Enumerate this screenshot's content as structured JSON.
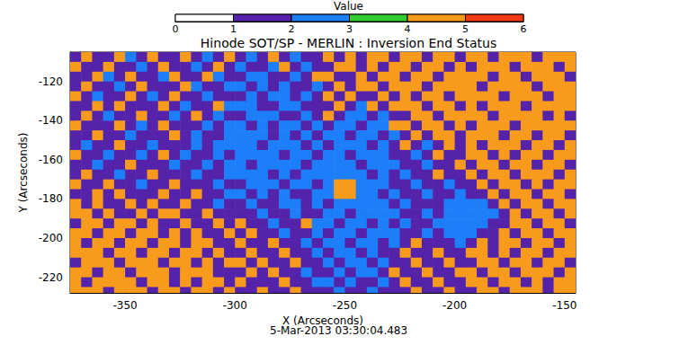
{
  "chart_data": {
    "type": "heatmap",
    "title": "Hinode SOT/SP - MERLIN : Inversion End Status",
    "x_label": "X (Arcseconds)",
    "y_label": "Y (Arcseconds)",
    "annotations": [
      "5-Mar-2013 03:30:04.483"
    ],
    "xlim": [
      -375,
      -145
    ],
    "ylim": [
      -228,
      -105
    ],
    "xticks": [
      -350,
      -300,
      -250,
      -200,
      -150
    ],
    "yticks": [
      -220,
      -200,
      -180,
      -160,
      -140,
      -120
    ],
    "grid": false,
    "x": [
      -372.5,
      -367.5,
      -362.5,
      -357.5,
      -352.5,
      -347.5,
      -342.5,
      -337.5,
      -332.5,
      -327.5,
      -322.5,
      -317.5,
      -312.5,
      -307.5,
      -302.5,
      -297.5,
      -292.5,
      -287.5,
      -282.5,
      -277.5,
      -272.5,
      -267.5,
      -262.5,
      -257.5,
      -252.5,
      -247.5,
      -242.5,
      -237.5,
      -232.5,
      -227.5,
      -222.5,
      -217.5,
      -212.5,
      -207.5,
      -202.5,
      -197.5,
      -192.5,
      -187.5,
      -182.5,
      -177.5,
      -172.5,
      -167.5,
      -162.5,
      -157.5,
      -152.5,
      -147.5
    ],
    "y": [
      -107.5,
      -112.5,
      -117.5,
      -122.5,
      -127.5,
      -132.5,
      -137.5,
      -142.5,
      -147.5,
      -152.5,
      -157.5,
      -162.5,
      -167.5,
      -172.5,
      -177.5,
      -182.5,
      -187.5,
      -192.5,
      -197.5,
      -202.5,
      -207.5,
      -212.5,
      -217.5,
      -222.5,
      -227.5
    ],
    "values": [
      [
        1,
        4,
        1,
        1,
        4,
        2,
        1,
        4,
        1,
        1,
        4,
        1,
        2,
        1,
        4,
        1,
        2,
        1,
        4,
        1,
        2,
        1,
        1,
        4,
        1,
        4,
        1,
        4,
        4,
        1,
        4,
        4,
        1,
        4,
        4,
        1,
        4,
        4,
        1,
        4,
        4,
        4,
        1,
        4,
        4,
        4
      ],
      [
        4,
        1,
        1,
        4,
        1,
        1,
        2,
        1,
        4,
        1,
        1,
        2,
        1,
        4,
        1,
        2,
        1,
        1,
        2,
        4,
        1,
        2,
        1,
        1,
        4,
        4,
        1,
        4,
        1,
        4,
        4,
        1,
        4,
        4,
        1,
        4,
        1,
        4,
        4,
        4,
        1,
        4,
        4,
        4,
        1,
        4
      ],
      [
        1,
        1,
        4,
        2,
        1,
        4,
        1,
        1,
        2,
        4,
        1,
        1,
        4,
        2,
        1,
        1,
        2,
        2,
        1,
        1,
        2,
        1,
        4,
        4,
        1,
        1,
        4,
        1,
        4,
        4,
        1,
        4,
        4,
        1,
        4,
        4,
        4,
        4,
        1,
        4,
        4,
        1,
        4,
        4,
        4,
        1
      ],
      [
        1,
        4,
        1,
        1,
        2,
        1,
        4,
        1,
        1,
        1,
        4,
        2,
        1,
        1,
        2,
        2,
        1,
        2,
        1,
        2,
        1,
        1,
        2,
        1,
        4,
        1,
        4,
        4,
        1,
        4,
        4,
        4,
        1,
        4,
        4,
        4,
        4,
        1,
        4,
        4,
        4,
        4,
        1,
        4,
        4,
        4
      ],
      [
        4,
        1,
        2,
        1,
        1,
        4,
        1,
        2,
        1,
        4,
        1,
        1,
        2,
        1,
        1,
        1,
        2,
        1,
        2,
        2,
        1,
        2,
        1,
        4,
        1,
        4,
        1,
        1,
        4,
        1,
        4,
        1,
        4,
        4,
        1,
        4,
        4,
        4,
        4,
        1,
        4,
        4,
        4,
        1,
        4,
        4
      ],
      [
        1,
        1,
        4,
        1,
        4,
        1,
        1,
        1,
        4,
        1,
        2,
        1,
        1,
        4,
        2,
        2,
        2,
        1,
        1,
        2,
        2,
        1,
        1,
        1,
        4,
        1,
        2,
        4,
        1,
        4,
        4,
        4,
        1,
        4,
        4,
        1,
        4,
        1,
        4,
        4,
        4,
        1,
        4,
        4,
        4,
        4
      ],
      [
        1,
        4,
        1,
        2,
        1,
        1,
        4,
        1,
        1,
        2,
        1,
        4,
        1,
        2,
        1,
        1,
        2,
        2,
        2,
        1,
        1,
        2,
        1,
        4,
        1,
        2,
        2,
        1,
        2,
        1,
        1,
        4,
        4,
        1,
        4,
        4,
        4,
        4,
        1,
        4,
        4,
        4,
        4,
        1,
        4,
        1
      ],
      [
        4,
        1,
        1,
        1,
        4,
        1,
        2,
        1,
        4,
        1,
        1,
        1,
        2,
        1,
        2,
        2,
        1,
        2,
        1,
        2,
        2,
        1,
        2,
        1,
        2,
        2,
        1,
        2,
        2,
        4,
        4,
        1,
        4,
        4,
        1,
        4,
        1,
        4,
        4,
        4,
        1,
        4,
        4,
        4,
        4,
        4
      ],
      [
        1,
        1,
        4,
        1,
        1,
        2,
        1,
        1,
        1,
        4,
        1,
        2,
        1,
        1,
        2,
        2,
        2,
        2,
        1,
        2,
        1,
        2,
        1,
        2,
        2,
        1,
        2,
        2,
        1,
        2,
        1,
        4,
        1,
        4,
        4,
        1,
        4,
        4,
        4,
        1,
        4,
        4,
        1,
        4,
        4,
        1
      ],
      [
        1,
        2,
        1,
        1,
        4,
        1,
        1,
        2,
        1,
        1,
        1,
        2,
        1,
        2,
        2,
        2,
        2,
        1,
        2,
        2,
        2,
        1,
        2,
        1,
        2,
        2,
        2,
        1,
        2,
        1,
        4,
        1,
        2,
        1,
        4,
        1,
        4,
        1,
        4,
        4,
        4,
        1,
        4,
        4,
        1,
        4
      ],
      [
        4,
        1,
        1,
        2,
        1,
        1,
        2,
        1,
        4,
        1,
        2,
        1,
        1,
        2,
        1,
        2,
        2,
        2,
        2,
        1,
        2,
        2,
        1,
        2,
        2,
        1,
        2,
        2,
        2,
        1,
        1,
        2,
        1,
        4,
        1,
        1,
        4,
        4,
        1,
        4,
        1,
        4,
        4,
        1,
        4,
        4
      ],
      [
        1,
        1,
        2,
        1,
        1,
        4,
        1,
        1,
        1,
        2,
        1,
        1,
        2,
        1,
        2,
        2,
        1,
        2,
        2,
        2,
        2,
        1,
        2,
        2,
        2,
        2,
        1,
        2,
        2,
        2,
        1,
        1,
        2,
        1,
        1,
        4,
        1,
        4,
        4,
        1,
        4,
        4,
        1,
        4,
        4,
        1
      ],
      [
        1,
        4,
        1,
        1,
        2,
        1,
        1,
        4,
        1,
        1,
        1,
        2,
        1,
        1,
        2,
        2,
        2,
        2,
        1,
        2,
        1,
        2,
        2,
        2,
        2,
        2,
        2,
        1,
        2,
        1,
        2,
        1,
        1,
        4,
        1,
        1,
        4,
        1,
        4,
        4,
        1,
        4,
        4,
        4,
        1,
        4
      ],
      [
        4,
        1,
        1,
        4,
        1,
        1,
        2,
        1,
        1,
        4,
        1,
        1,
        1,
        2,
        1,
        1,
        2,
        2,
        2,
        1,
        2,
        2,
        1,
        2,
        4,
        4,
        2,
        2,
        2,
        1,
        1,
        2,
        1,
        1,
        2,
        1,
        1,
        4,
        1,
        4,
        4,
        1,
        4,
        1,
        4,
        4
      ],
      [
        1,
        1,
        4,
        1,
        4,
        1,
        1,
        1,
        4,
        1,
        1,
        4,
        1,
        1,
        2,
        2,
        1,
        2,
        1,
        2,
        1,
        1,
        2,
        2,
        4,
        4,
        2,
        2,
        1,
        2,
        1,
        1,
        2,
        1,
        1,
        2,
        1,
        1,
        4,
        1,
        4,
        4,
        1,
        4,
        4,
        1
      ],
      [
        4,
        1,
        4,
        1,
        1,
        4,
        1,
        4,
        1,
        1,
        4,
        1,
        1,
        2,
        1,
        1,
        2,
        1,
        1,
        2,
        2,
        1,
        2,
        1,
        2,
        2,
        2,
        2,
        2,
        1,
        2,
        1,
        1,
        1,
        2,
        2,
        2,
        2,
        1,
        4,
        1,
        4,
        4,
        1,
        4,
        4
      ],
      [
        4,
        4,
        1,
        4,
        1,
        1,
        4,
        1,
        4,
        4,
        1,
        1,
        4,
        1,
        1,
        1,
        1,
        2,
        1,
        1,
        2,
        1,
        1,
        2,
        2,
        1,
        2,
        2,
        2,
        2,
        1,
        1,
        2,
        1,
        2,
        2,
        2,
        2,
        2,
        1,
        4,
        1,
        4,
        4,
        1,
        4
      ],
      [
        1,
        4,
        4,
        1,
        4,
        4,
        1,
        4,
        1,
        1,
        4,
        1,
        1,
        4,
        1,
        4,
        1,
        1,
        2,
        1,
        1,
        4,
        2,
        2,
        1,
        2,
        2,
        1,
        2,
        1,
        2,
        1,
        1,
        2,
        2,
        2,
        2,
        2,
        1,
        1,
        4,
        4,
        1,
        4,
        4,
        1
      ],
      [
        4,
        4,
        1,
        4,
        4,
        1,
        4,
        4,
        1,
        4,
        1,
        4,
        1,
        1,
        4,
        1,
        4,
        1,
        1,
        2,
        1,
        1,
        2,
        1,
        2,
        2,
        1,
        2,
        2,
        2,
        1,
        1,
        2,
        1,
        2,
        2,
        2,
        1,
        1,
        4,
        1,
        4,
        4,
        1,
        4,
        4
      ],
      [
        4,
        1,
        4,
        4,
        1,
        4,
        4,
        1,
        4,
        4,
        1,
        4,
        4,
        1,
        1,
        4,
        1,
        1,
        4,
        1,
        1,
        2,
        1,
        2,
        2,
        1,
        2,
        2,
        1,
        2,
        1,
        4,
        1,
        1,
        1,
        2,
        1,
        4,
        1,
        4,
        4,
        1,
        4,
        4,
        1,
        4
      ],
      [
        4,
        4,
        4,
        1,
        4,
        4,
        1,
        4,
        4,
        1,
        4,
        4,
        1,
        4,
        1,
        1,
        4,
        1,
        1,
        4,
        1,
        1,
        2,
        1,
        2,
        2,
        1,
        2,
        1,
        1,
        4,
        1,
        1,
        4,
        1,
        1,
        4,
        4,
        1,
        4,
        1,
        4,
        4,
        1,
        4,
        4
      ],
      [
        1,
        4,
        4,
        4,
        1,
        4,
        4,
        4,
        1,
        4,
        4,
        1,
        4,
        1,
        4,
        4,
        1,
        4,
        1,
        1,
        4,
        1,
        1,
        2,
        1,
        2,
        2,
        1,
        2,
        1,
        1,
        4,
        1,
        1,
        4,
        1,
        1,
        4,
        4,
        1,
        4,
        4,
        1,
        4,
        4,
        1
      ],
      [
        4,
        4,
        1,
        4,
        4,
        1,
        4,
        4,
        4,
        1,
        4,
        4,
        4,
        1,
        1,
        1,
        4,
        1,
        4,
        1,
        1,
        2,
        1,
        1,
        2,
        1,
        2,
        2,
        1,
        4,
        1,
        1,
        4,
        1,
        1,
        4,
        4,
        1,
        4,
        4,
        1,
        4,
        4,
        4,
        1,
        4
      ],
      [
        4,
        1,
        4,
        4,
        4,
        4,
        1,
        4,
        4,
        1,
        4,
        1,
        4,
        4,
        1,
        4,
        1,
        1,
        1,
        4,
        1,
        1,
        2,
        2,
        1,
        2,
        1,
        1,
        2,
        1,
        4,
        1,
        1,
        4,
        1,
        1,
        4,
        4,
        1,
        4,
        4,
        1,
        4,
        1,
        4,
        4
      ],
      [
        4,
        4,
        4,
        1,
        4,
        4,
        4,
        1,
        4,
        4,
        1,
        4,
        4,
        1,
        4,
        1,
        1,
        4,
        1,
        1,
        4,
        1,
        1,
        1,
        2,
        1,
        1,
        2,
        1,
        1,
        1,
        4,
        1,
        1,
        4,
        1,
        1,
        4,
        4,
        1,
        4,
        4,
        4,
        1,
        4,
        4
      ]
    ],
    "colorbar": {
      "label": "Value",
      "range": [
        0,
        6
      ],
      "ticks": [
        0,
        1,
        2,
        3,
        4,
        5,
        6
      ],
      "colors": [
        "#ffffff",
        "#5522aa",
        "#1c7ef8",
        "#33cc33",
        "#f89a1c",
        "#f23a14"
      ]
    }
  }
}
